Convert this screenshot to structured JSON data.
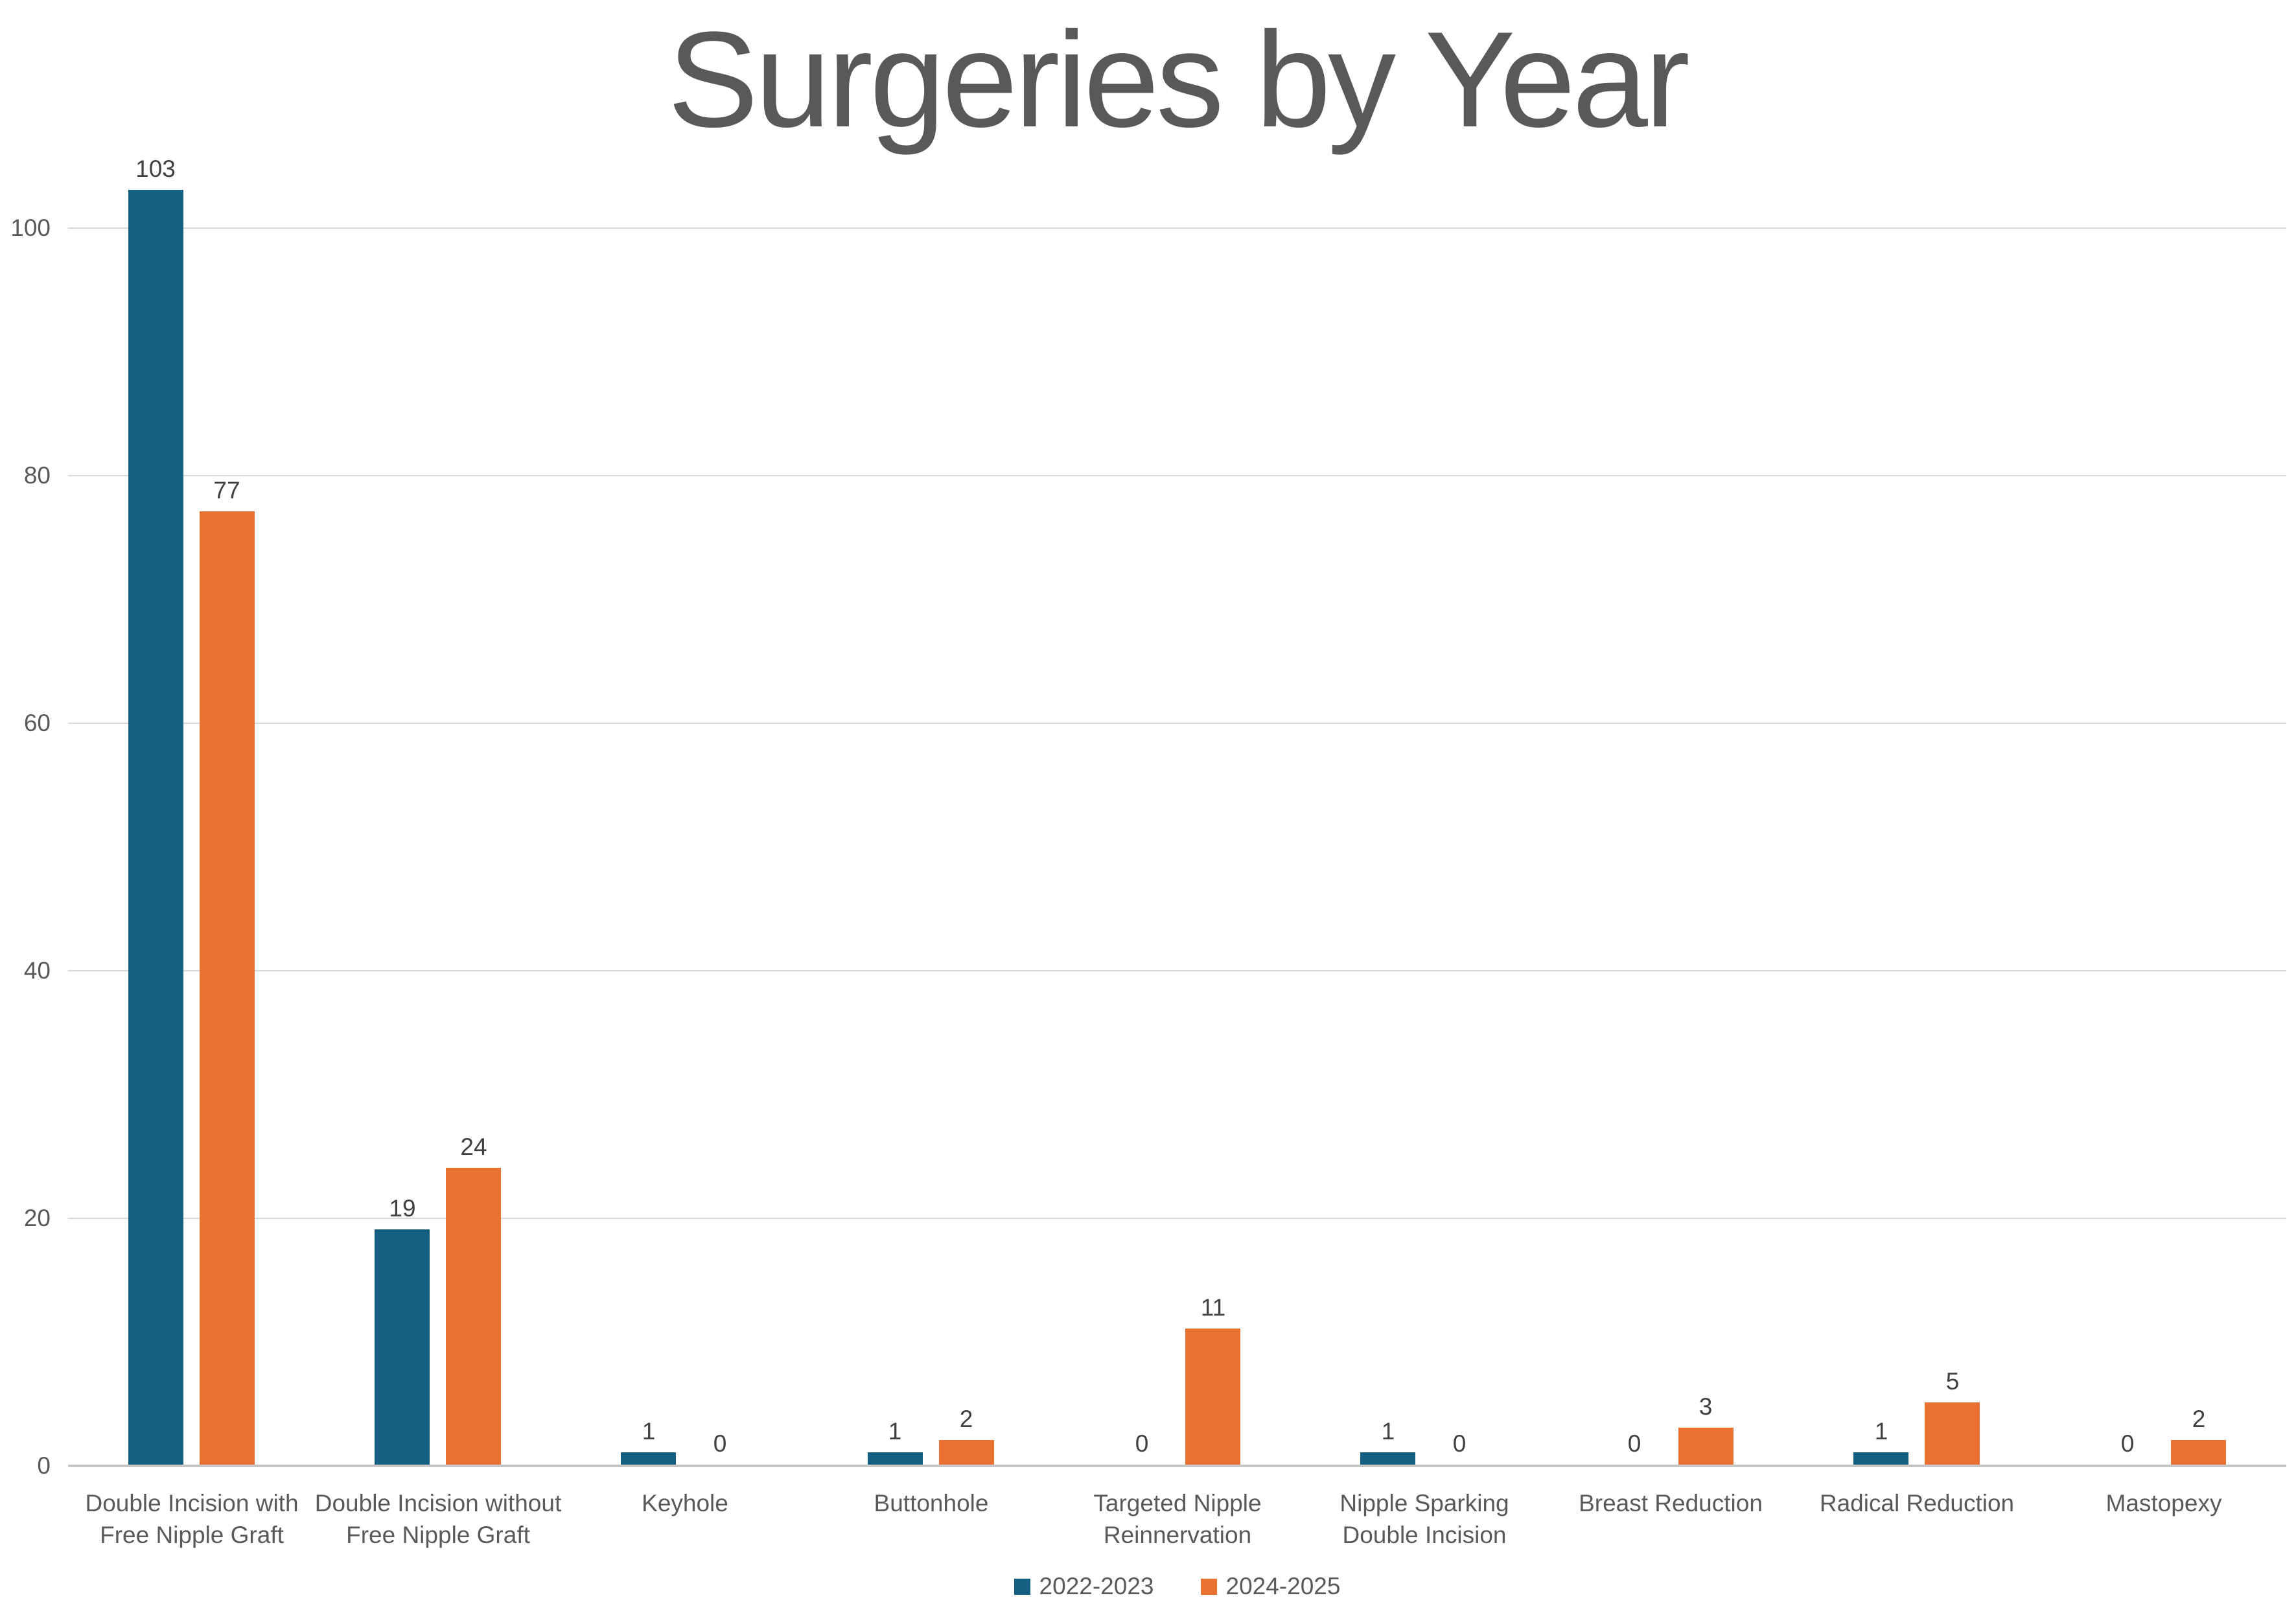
{
  "title": "Surgeries by Year",
  "chart_data": {
    "type": "bar",
    "title": "Surgeries by Year",
    "xlabel": "",
    "ylabel": "",
    "categories": [
      "Double Incision with Free Nipple Graft",
      "Double Incision without Free Nipple Graft",
      "Keyhole",
      "Buttonhole",
      "Targeted Nipple Reinnervation",
      "Nipple Sparking Double Incision",
      "Breast Reduction",
      "Radical Reduction",
      "Mastopexy"
    ],
    "series": [
      {
        "name": "2022-2023",
        "color": "#156082",
        "values": [
          103,
          19,
          1,
          1,
          0,
          1,
          0,
          1,
          0
        ]
      },
      {
        "name": "2024-2025",
        "color": "#E97132",
        "values": [
          77,
          24,
          0,
          2,
          11,
          0,
          3,
          5,
          2
        ]
      }
    ],
    "yticks": [
      0,
      20,
      40,
      60,
      80,
      100
    ],
    "ylim": [
      0,
      110
    ],
    "grid": "horizontal",
    "legend_position": "bottom",
    "data_labels": "outside-end"
  },
  "colors": {
    "series1": "#156082",
    "series2": "#E97132",
    "title_text": "#595959",
    "axis_text": "#595959",
    "data_label_text": "#404040",
    "gridline": "#D9D9D9",
    "axis_line": "#C6C6C6",
    "background": "#FFFFFF"
  },
  "legend": {
    "items": [
      {
        "label": "2022-2023",
        "color": "#156082"
      },
      {
        "label": "2024-2025",
        "color": "#E97132"
      }
    ]
  }
}
